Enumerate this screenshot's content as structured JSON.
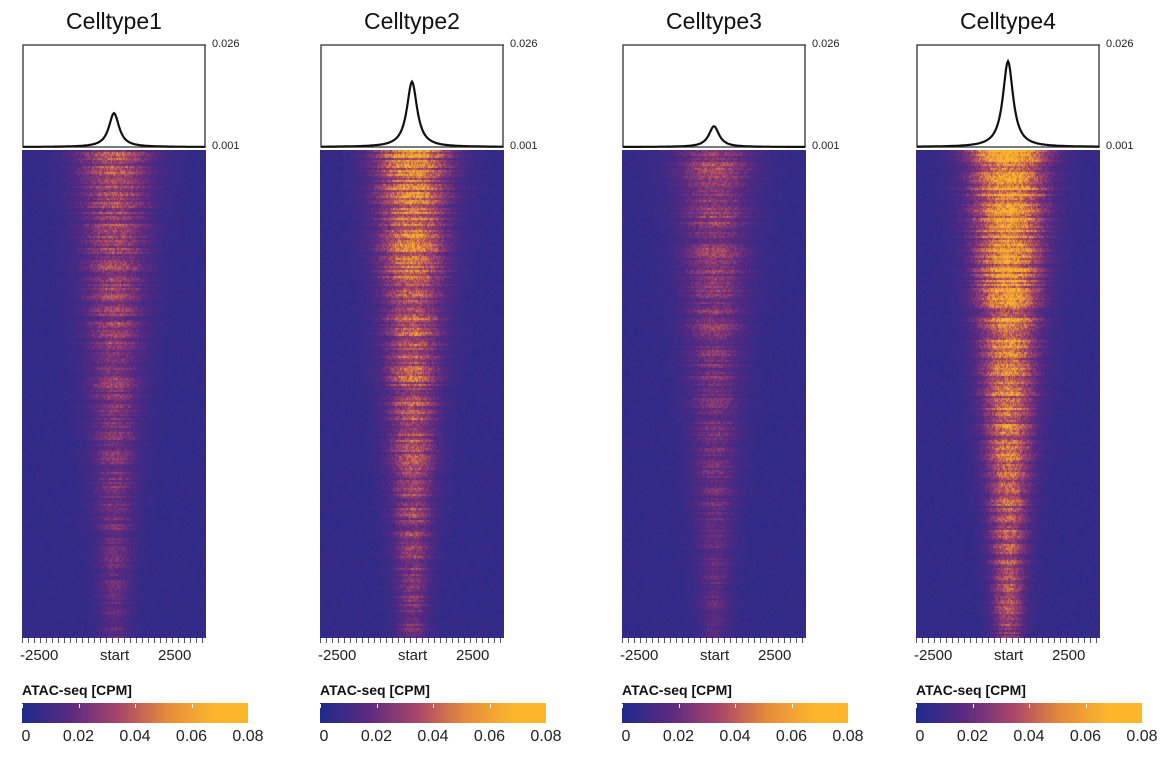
{
  "chart_data": {
    "type": "heatmap",
    "panels": [
      {
        "title": "Celltype1",
        "profile_peak": 0.0093,
        "signal": 0.035
      },
      {
        "title": "Celltype2",
        "profile_peak": 0.017,
        "signal": 0.055
      },
      {
        "title": "Celltype3",
        "profile_peak": 0.0061,
        "signal": 0.03
      },
      {
        "title": "Celltype4",
        "profile_peak": 0.022,
        "signal": 0.075
      }
    ],
    "profile_ylim": [
      0.001,
      0.026
    ],
    "profile_ytick_labels": [
      "0.026",
      "0.001"
    ],
    "x_tick_labels": [
      "-2500",
      "start",
      "2500"
    ],
    "xlim": [
      -2500,
      2500
    ],
    "colorbar": {
      "label": "ATAC-seq [CPM]",
      "range": [
        0,
        0.08
      ],
      "tick_labels": [
        "0",
        "0.02",
        "0.04",
        "0.06",
        "0.08"
      ],
      "colors": [
        "#1f2a8c",
        "#5a2a80",
        "#a8456a",
        "#e48a3c",
        "#fbb62c"
      ]
    }
  }
}
